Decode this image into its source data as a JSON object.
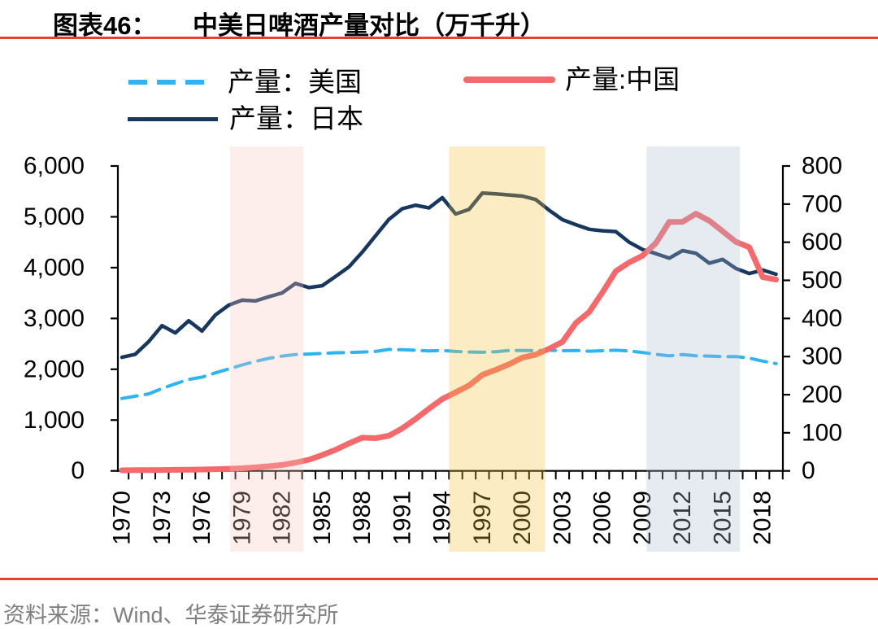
{
  "header": {
    "figure_label": "图表46：",
    "title": "中美日啤酒产量对比（万千升）"
  },
  "source": {
    "text": "资料来源：Wind、华泰证券研究所"
  },
  "colors": {
    "rule_red": "#E8402C",
    "us_line": "#2FB4F0",
    "china_line": "#F4696C",
    "japan_line": "#17375E",
    "axis_black": "#000000",
    "source_gray": "#7F7F7F"
  },
  "legend": {
    "items": [
      {
        "id": "us",
        "label": "产量：美国",
        "color": "#2FB4F0",
        "style": "dashed"
      },
      {
        "id": "cn",
        "label": "产量:中国",
        "color": "#F4696C",
        "style": "solid-thick"
      },
      {
        "id": "jp",
        "label": "产量：日本",
        "color": "#17375E",
        "style": "solid"
      }
    ]
  },
  "chart_data": {
    "type": "line",
    "title": "中美日啤酒产量对比（万千升）",
    "legend_position": "top",
    "grid": false,
    "x": [
      1970,
      1971,
      1972,
      1973,
      1974,
      1975,
      1976,
      1977,
      1978,
      1979,
      1980,
      1981,
      1982,
      1983,
      1984,
      1985,
      1986,
      1987,
      1988,
      1989,
      1990,
      1991,
      1992,
      1993,
      1994,
      1995,
      1996,
      1997,
      1998,
      1999,
      2000,
      2001,
      2002,
      2003,
      2004,
      2005,
      2006,
      2007,
      2008,
      2009,
      2010,
      2011,
      2012,
      2013,
      2014,
      2015,
      2016,
      2017,
      2018,
      2019
    ],
    "series": [
      {
        "name": "产量：美国",
        "axis": "left",
        "color": "#2FB4F0",
        "style": "dashed",
        "stroke_width": 4,
        "values": [
          1425,
          1470,
          1515,
          1620,
          1715,
          1800,
          1845,
          1930,
          2005,
          2085,
          2155,
          2215,
          2260,
          2290,
          2300,
          2310,
          2325,
          2330,
          2340,
          2350,
          2390,
          2385,
          2375,
          2360,
          2370,
          2350,
          2340,
          2335,
          2345,
          2370,
          2370,
          2365,
          2375,
          2365,
          2370,
          2355,
          2365,
          2375,
          2360,
          2330,
          2295,
          2265,
          2290,
          2265,
          2260,
          2250,
          2250,
          2220,
          2160,
          2110
        ]
      },
      {
        "name": "产量：日本",
        "axis": "right",
        "color": "#17375E",
        "style": "solid",
        "stroke_width": 4.5,
        "values": [
          298,
          306,
          339,
          381,
          362,
          394,
          367,
          409,
          435,
          448,
          446,
          457,
          467,
          492,
          481,
          486,
          510,
          535,
          574,
          617,
          660,
          688,
          697,
          690,
          717,
          674,
          686,
          729,
          727,
          724,
          721,
          712,
          684,
          659,
          646,
          634,
          630,
          628,
          600,
          581,
          570,
          558,
          578,
          571,
          545,
          555,
          531,
          518,
          527,
          516
        ]
      },
      {
        "name": "产量:中国",
        "axis": "left",
        "color": "#F4696C",
        "style": "solid",
        "stroke_width": 7,
        "values": [
          12,
          14,
          16,
          18,
          21,
          24,
          27,
          33,
          41,
          52,
          69,
          91,
          117,
          163,
          220,
          310,
          415,
          540,
          654,
          643,
          692,
          838,
          1021,
          1225,
          1415,
          1546,
          1682,
          1889,
          1988,
          2099,
          2231,
          2289,
          2403,
          2540,
          2910,
          3126,
          3515,
          3931,
          4103,
          4236,
          4483,
          4899,
          4902,
          5062,
          4922,
          4716,
          4506,
          4401,
          3812,
          3765
        ]
      }
    ],
    "left_axis": {
      "min": 0,
      "max": 6000,
      "ticks": [
        0,
        1000,
        2000,
        3000,
        4000,
        5000,
        6000
      ],
      "tick_labels": [
        "0",
        "1,000",
        "2,000",
        "3,000",
        "4,000",
        "5,000",
        "6,000"
      ]
    },
    "right_axis": {
      "min": 0,
      "max": 800,
      "ticks": [
        0,
        100,
        200,
        300,
        400,
        500,
        600,
        700,
        800
      ],
      "tick_labels": [
        "0",
        "100",
        "200",
        "300",
        "400",
        "500",
        "600",
        "700",
        "800"
      ]
    },
    "x_axis": {
      "labeled_years": [
        1970,
        1973,
        1976,
        1979,
        1982,
        1985,
        1988,
        1991,
        1994,
        1997,
        2000,
        2003,
        2006,
        2009,
        2012,
        2015,
        2018
      ],
      "minor_tick_interval": 1
    },
    "bands": [
      {
        "from_year": 1978.1,
        "to_year": 1983.6,
        "color": "rgba(248,198,192,0.30)"
      },
      {
        "from_year": 1994.5,
        "to_year": 2001.7,
        "color": "rgba(242,192,58,0.30)"
      },
      {
        "from_year": 2009.3,
        "to_year": 2016.3,
        "color": "rgba(172,185,208,0.30)"
      }
    ]
  }
}
